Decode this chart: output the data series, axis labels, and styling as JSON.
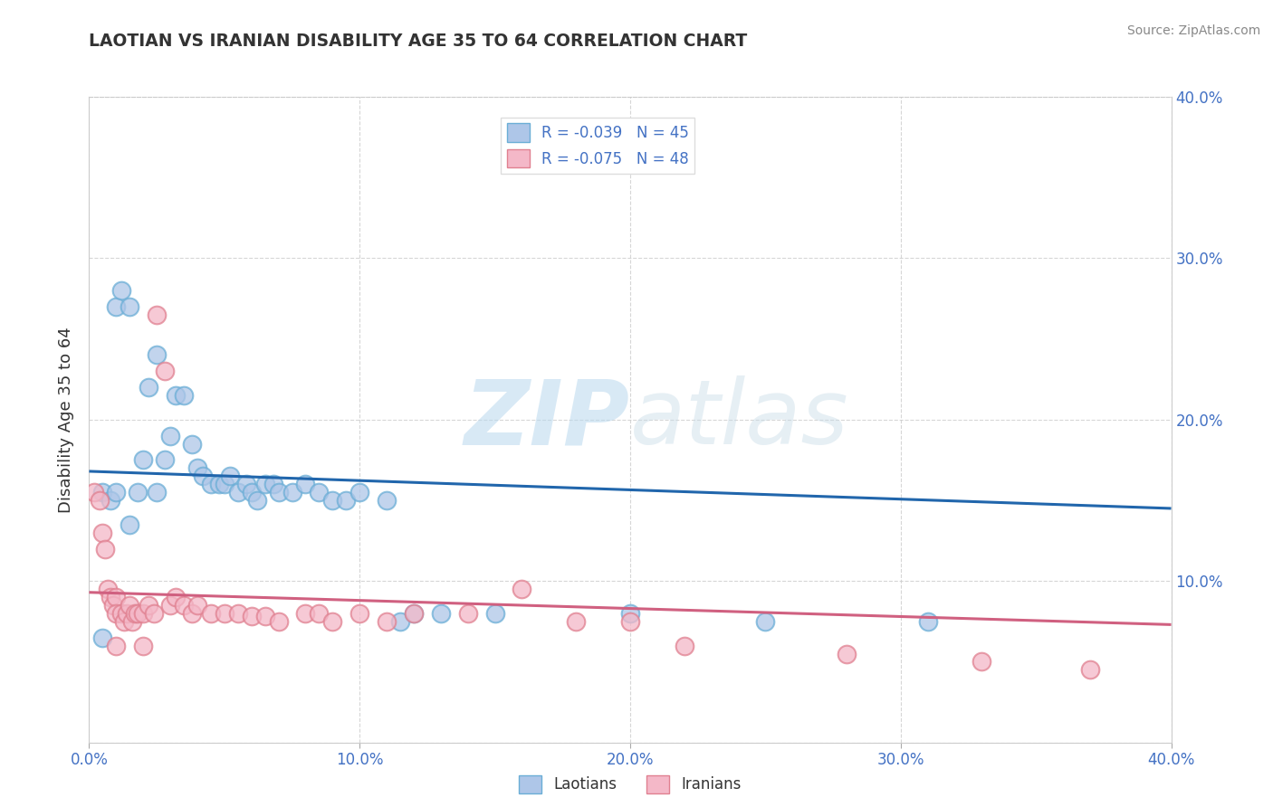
{
  "title": "LAOTIAN VS IRANIAN DISABILITY AGE 35 TO 64 CORRELATION CHART",
  "source": "Source: ZipAtlas.com",
  "ylabel": "Disability Age 35 to 64",
  "xlim": [
    0.0,
    0.4
  ],
  "ylim": [
    0.0,
    0.4
  ],
  "laotian_color_fill": "#aec6e8",
  "laotian_color_edge": "#6baed6",
  "iranian_color_fill": "#f4b8c8",
  "iranian_color_edge": "#e08090",
  "laotian_line_color": "#2166ac",
  "iranian_line_color": "#d06080",
  "laotian_scatter": [
    [
      0.005,
      0.155
    ],
    [
      0.008,
      0.15
    ],
    [
      0.01,
      0.27
    ],
    [
      0.012,
      0.28
    ],
    [
      0.015,
      0.27
    ],
    [
      0.018,
      0.155
    ],
    [
      0.02,
      0.175
    ],
    [
      0.022,
      0.22
    ],
    [
      0.025,
      0.24
    ],
    [
      0.028,
      0.175
    ],
    [
      0.03,
      0.19
    ],
    [
      0.032,
      0.215
    ],
    [
      0.035,
      0.215
    ],
    [
      0.038,
      0.185
    ],
    [
      0.04,
      0.17
    ],
    [
      0.042,
      0.165
    ],
    [
      0.045,
      0.16
    ],
    [
      0.048,
      0.16
    ],
    [
      0.05,
      0.16
    ],
    [
      0.052,
      0.165
    ],
    [
      0.055,
      0.155
    ],
    [
      0.058,
      0.16
    ],
    [
      0.06,
      0.155
    ],
    [
      0.062,
      0.15
    ],
    [
      0.065,
      0.16
    ],
    [
      0.068,
      0.16
    ],
    [
      0.07,
      0.155
    ],
    [
      0.075,
      0.155
    ],
    [
      0.08,
      0.16
    ],
    [
      0.085,
      0.155
    ],
    [
      0.09,
      0.15
    ],
    [
      0.095,
      0.15
    ],
    [
      0.1,
      0.155
    ],
    [
      0.11,
      0.15
    ],
    [
      0.115,
      0.075
    ],
    [
      0.12,
      0.08
    ],
    [
      0.13,
      0.08
    ],
    [
      0.15,
      0.08
    ],
    [
      0.2,
      0.08
    ],
    [
      0.25,
      0.075
    ],
    [
      0.31,
      0.075
    ],
    [
      0.005,
      0.065
    ],
    [
      0.025,
      0.155
    ],
    [
      0.01,
      0.155
    ],
    [
      0.015,
      0.135
    ]
  ],
  "iranian_scatter": [
    [
      0.002,
      0.155
    ],
    [
      0.004,
      0.15
    ],
    [
      0.005,
      0.13
    ],
    [
      0.006,
      0.12
    ],
    [
      0.007,
      0.095
    ],
    [
      0.008,
      0.09
    ],
    [
      0.009,
      0.085
    ],
    [
      0.01,
      0.09
    ],
    [
      0.01,
      0.08
    ],
    [
      0.012,
      0.08
    ],
    [
      0.013,
      0.075
    ],
    [
      0.014,
      0.08
    ],
    [
      0.015,
      0.085
    ],
    [
      0.016,
      0.075
    ],
    [
      0.017,
      0.08
    ],
    [
      0.018,
      0.08
    ],
    [
      0.02,
      0.08
    ],
    [
      0.022,
      0.085
    ],
    [
      0.024,
      0.08
    ],
    [
      0.025,
      0.265
    ],
    [
      0.028,
      0.23
    ],
    [
      0.03,
      0.085
    ],
    [
      0.032,
      0.09
    ],
    [
      0.035,
      0.085
    ],
    [
      0.038,
      0.08
    ],
    [
      0.04,
      0.085
    ],
    [
      0.045,
      0.08
    ],
    [
      0.05,
      0.08
    ],
    [
      0.055,
      0.08
    ],
    [
      0.06,
      0.078
    ],
    [
      0.065,
      0.078
    ],
    [
      0.07,
      0.075
    ],
    [
      0.08,
      0.08
    ],
    [
      0.085,
      0.08
    ],
    [
      0.09,
      0.075
    ],
    [
      0.1,
      0.08
    ],
    [
      0.11,
      0.075
    ],
    [
      0.12,
      0.08
    ],
    [
      0.14,
      0.08
    ],
    [
      0.16,
      0.095
    ],
    [
      0.18,
      0.075
    ],
    [
      0.2,
      0.075
    ],
    [
      0.22,
      0.06
    ],
    [
      0.28,
      0.055
    ],
    [
      0.33,
      0.05
    ],
    [
      0.37,
      0.045
    ],
    [
      0.01,
      0.06
    ],
    [
      0.02,
      0.06
    ]
  ],
  "laotian_line_y": [
    0.168,
    0.145
  ],
  "iranian_line_y": [
    0.093,
    0.073
  ],
  "watermark_zip": "ZIP",
  "watermark_atlas": "atlas",
  "grid_color": "#cccccc",
  "background_color": "#ffffff",
  "tick_color": "#4472c4",
  "title_color": "#333333"
}
